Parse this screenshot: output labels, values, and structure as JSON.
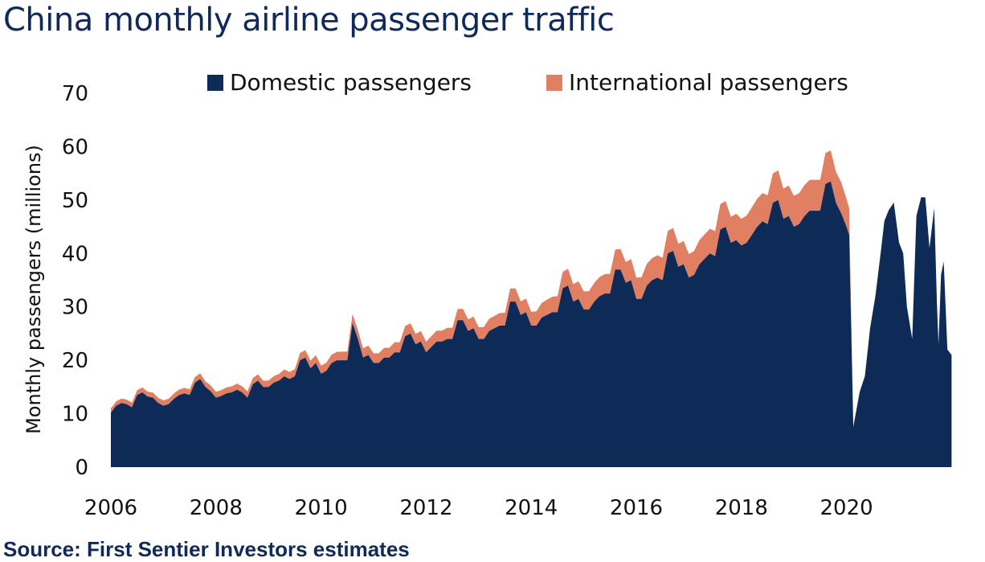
{
  "title": "China monthly airline passenger traffic",
  "source": "Source: First Sentier Investors estimates",
  "chart_data": {
    "type": "area",
    "stacked": true,
    "title": "China monthly airline passenger traffic",
    "xlabel": "",
    "ylabel": "Monthly passengers (millions)",
    "ylim": [
      0,
      70
    ],
    "yticks": [
      0,
      10,
      20,
      30,
      40,
      50,
      60,
      70
    ],
    "xlim": [
      2006.0,
      2021.85
    ],
    "xticks": [
      "2006",
      "2008",
      "2010",
      "2012",
      "2014",
      "2016",
      "2018",
      "2020"
    ],
    "grid": false,
    "legend": "top",
    "series": [
      {
        "name": "Domestic passengers",
        "color": "#0e2a56",
        "points": [
          [
            2006.0,
            10.2
          ],
          [
            2006.1,
            11.5
          ],
          [
            2006.2,
            12.0
          ],
          [
            2006.3,
            11.8
          ],
          [
            2006.4,
            11.2
          ],
          [
            2006.5,
            13.5
          ],
          [
            2006.6,
            14.0
          ],
          [
            2006.7,
            13.2
          ],
          [
            2006.8,
            13.0
          ],
          [
            2006.9,
            12.0
          ],
          [
            2007.0,
            11.5
          ],
          [
            2007.1,
            11.8
          ],
          [
            2007.2,
            12.8
          ],
          [
            2007.3,
            13.5
          ],
          [
            2007.4,
            13.8
          ],
          [
            2007.5,
            13.5
          ],
          [
            2007.6,
            15.8
          ],
          [
            2007.7,
            16.5
          ],
          [
            2007.8,
            15.0
          ],
          [
            2007.9,
            14.2
          ],
          [
            2008.0,
            13.0
          ],
          [
            2008.1,
            13.3
          ],
          [
            2008.2,
            13.8
          ],
          [
            2008.3,
            14.0
          ],
          [
            2008.4,
            14.5
          ],
          [
            2008.5,
            14.0
          ],
          [
            2008.6,
            13.0
          ],
          [
            2008.7,
            15.5
          ],
          [
            2008.8,
            16.2
          ],
          [
            2008.9,
            15.0
          ],
          [
            2009.0,
            15.0
          ],
          [
            2009.1,
            15.8
          ],
          [
            2009.2,
            16.2
          ],
          [
            2009.3,
            17.0
          ],
          [
            2009.4,
            16.5
          ],
          [
            2009.5,
            17.0
          ],
          [
            2009.6,
            20.0
          ],
          [
            2009.7,
            20.5
          ],
          [
            2009.8,
            18.5
          ],
          [
            2009.9,
            19.5
          ],
          [
            2010.0,
            17.5
          ],
          [
            2010.1,
            18.0
          ],
          [
            2010.2,
            19.5
          ],
          [
            2010.3,
            20.0
          ],
          [
            2010.4,
            20.0
          ],
          [
            2010.5,
            20.0
          ],
          [
            2010.6,
            27.0
          ],
          [
            2010.7,
            24.0
          ],
          [
            2010.8,
            20.5
          ],
          [
            2010.9,
            21.0
          ],
          [
            2011.0,
            19.5
          ],
          [
            2011.1,
            19.5
          ],
          [
            2011.2,
            20.5
          ],
          [
            2011.3,
            20.5
          ],
          [
            2011.4,
            21.5
          ],
          [
            2011.5,
            21.5
          ],
          [
            2011.6,
            24.5
          ],
          [
            2011.7,
            25.0
          ],
          [
            2011.8,
            23.0
          ],
          [
            2011.9,
            23.5
          ],
          [
            2012.0,
            21.5
          ],
          [
            2012.1,
            22.5
          ],
          [
            2012.2,
            23.5
          ],
          [
            2012.3,
            23.5
          ],
          [
            2012.4,
            24.0
          ],
          [
            2012.5,
            24.0
          ],
          [
            2012.6,
            27.5
          ],
          [
            2012.7,
            27.5
          ],
          [
            2012.8,
            25.5
          ],
          [
            2012.9,
            26.0
          ],
          [
            2013.0,
            24.0
          ],
          [
            2013.1,
            24.0
          ],
          [
            2013.2,
            25.5
          ],
          [
            2013.3,
            26.0
          ],
          [
            2013.4,
            26.5
          ],
          [
            2013.5,
            26.5
          ],
          [
            2013.6,
            31.0
          ],
          [
            2013.7,
            31.0
          ],
          [
            2013.8,
            28.5
          ],
          [
            2013.9,
            29.0
          ],
          [
            2014.0,
            26.5
          ],
          [
            2014.1,
            26.5
          ],
          [
            2014.2,
            28.0
          ],
          [
            2014.3,
            28.5
          ],
          [
            2014.4,
            29.0
          ],
          [
            2014.5,
            29.0
          ],
          [
            2014.6,
            33.5
          ],
          [
            2014.7,
            34.0
          ],
          [
            2014.8,
            31.0
          ],
          [
            2014.9,
            31.5
          ],
          [
            2015.0,
            29.5
          ],
          [
            2015.1,
            29.5
          ],
          [
            2015.2,
            31.0
          ],
          [
            2015.3,
            32.0
          ],
          [
            2015.4,
            32.5
          ],
          [
            2015.5,
            32.5
          ],
          [
            2015.6,
            37.0
          ],
          [
            2015.7,
            37.0
          ],
          [
            2015.8,
            34.5
          ],
          [
            2015.9,
            35.0
          ],
          [
            2016.0,
            31.5
          ],
          [
            2016.1,
            31.5
          ],
          [
            2016.2,
            34.0
          ],
          [
            2016.3,
            35.0
          ],
          [
            2016.4,
            35.5
          ],
          [
            2016.5,
            35.0
          ],
          [
            2016.6,
            40.0
          ],
          [
            2016.7,
            40.5
          ],
          [
            2016.8,
            37.5
          ],
          [
            2016.9,
            38.0
          ],
          [
            2017.0,
            35.5
          ],
          [
            2017.1,
            36.0
          ],
          [
            2017.2,
            38.0
          ],
          [
            2017.3,
            39.0
          ],
          [
            2017.4,
            40.0
          ],
          [
            2017.5,
            39.5
          ],
          [
            2017.6,
            44.5
          ],
          [
            2017.7,
            45.0
          ],
          [
            2017.8,
            42.0
          ],
          [
            2017.9,
            42.5
          ],
          [
            2018.0,
            41.5
          ],
          [
            2018.1,
            42.0
          ],
          [
            2018.2,
            43.5
          ],
          [
            2018.3,
            45.0
          ],
          [
            2018.4,
            46.0
          ],
          [
            2018.5,
            45.5
          ],
          [
            2018.6,
            49.5
          ],
          [
            2018.7,
            50.0
          ],
          [
            2018.8,
            46.5
          ],
          [
            2018.9,
            47.0
          ],
          [
            2019.0,
            45.0
          ],
          [
            2019.1,
            45.5
          ],
          [
            2019.2,
            47.0
          ],
          [
            2019.3,
            48.0
          ],
          [
            2019.4,
            48.0
          ],
          [
            2019.5,
            48.0
          ],
          [
            2019.6,
            53.0
          ],
          [
            2019.7,
            53.5
          ],
          [
            2019.8,
            49.5
          ],
          [
            2019.9,
            47.5
          ],
          [
            2020.0,
            45.0
          ],
          [
            2020.05,
            43.5
          ],
          [
            2020.13,
            7.5
          ],
          [
            2020.25,
            14.0
          ],
          [
            2020.35,
            17.0
          ],
          [
            2020.45,
            26.0
          ],
          [
            2020.55,
            32.0
          ],
          [
            2020.65,
            40.0
          ],
          [
            2020.72,
            46.0
          ],
          [
            2020.8,
            48.0
          ],
          [
            2020.9,
            49.5
          ],
          [
            2021.0,
            42.0
          ],
          [
            2021.08,
            40.0
          ],
          [
            2021.15,
            30.0
          ],
          [
            2021.25,
            24.0
          ],
          [
            2021.33,
            47.0
          ],
          [
            2021.42,
            50.5
          ],
          [
            2021.5,
            50.5
          ],
          [
            2021.58,
            41.0
          ],
          [
            2021.67,
            48.5
          ],
          [
            2021.72,
            31.0
          ],
          [
            2021.75,
            23.0
          ],
          [
            2021.8,
            36.0
          ],
          [
            2021.85,
            38.5
          ],
          [
            2021.92,
            22.0
          ],
          [
            2022.0,
            21.0
          ]
        ]
      },
      {
        "name": "International passengers",
        "color": "#e07f62",
        "points": [
          [
            2006.0,
            0.8
          ],
          [
            2007.0,
            1.0
          ],
          [
            2008.0,
            1.1
          ],
          [
            2009.0,
            1.2
          ],
          [
            2010.0,
            1.5
          ],
          [
            2011.0,
            1.8
          ],
          [
            2012.0,
            2.0
          ],
          [
            2013.0,
            2.2
          ],
          [
            2014.0,
            2.6
          ],
          [
            2015.0,
            3.4
          ],
          [
            2016.0,
            4.0
          ],
          [
            2017.0,
            4.4
          ],
          [
            2018.0,
            5.0
          ],
          [
            2019.0,
            5.8
          ],
          [
            2019.9,
            5.8
          ],
          [
            2020.05,
            5.0
          ],
          [
            2020.13,
            0.2
          ],
          [
            2022.0,
            0.0
          ]
        ]
      }
    ]
  }
}
